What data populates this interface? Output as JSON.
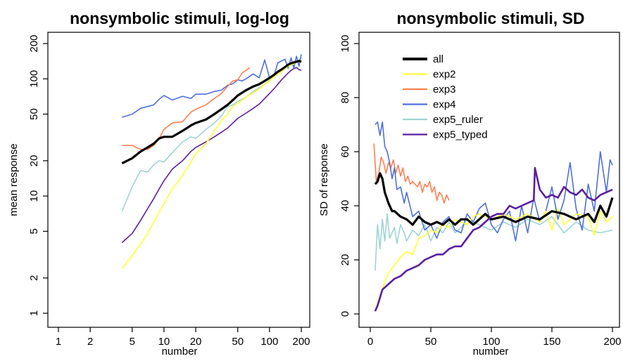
{
  "chart_data": [
    {
      "type": "line",
      "title": "nonsymbolic stimuli, log-log",
      "xlabel": "number",
      "ylabel": "mean response",
      "xscale": "log",
      "yscale": "log",
      "xlim": [
        1,
        200
      ],
      "ylim": [
        1,
        200
      ],
      "xticks": [
        1,
        2,
        5,
        10,
        20,
        50,
        100,
        200
      ],
      "yticks": [
        1,
        2,
        5,
        10,
        20,
        50,
        100,
        200
      ],
      "grid": false,
      "series": [
        {
          "name": "all",
          "color": "#000000",
          "width": 3.2,
          "x": [
            4,
            5,
            6,
            7,
            8,
            9,
            10,
            12,
            15,
            18,
            20,
            25,
            30,
            35,
            40,
            45,
            50,
            60,
            70,
            80,
            90,
            100,
            110,
            120,
            130,
            140,
            150,
            160,
            170,
            180,
            190,
            200
          ],
          "y": [
            19,
            21,
            24,
            26,
            28,
            31,
            32,
            32,
            36,
            40,
            42,
            45,
            50,
            55,
            60,
            66,
            72,
            80,
            86,
            90,
            96,
            102,
            108,
            115,
            120,
            126,
            132,
            136,
            138,
            140,
            142,
            140
          ]
        },
        {
          "name": "exp2",
          "color": "#ffff33",
          "width": 1.6,
          "x": [
            4,
            5,
            6,
            7,
            8,
            9,
            10,
            12,
            15,
            18,
            20,
            25,
            30,
            35,
            40,
            45,
            50,
            60,
            70,
            80,
            90,
            100,
            110,
            120,
            130,
            140,
            150,
            160,
            170,
            180,
            190,
            200
          ],
          "y": [
            2.4,
            3.1,
            3.9,
            4.8,
            6,
            7.3,
            8.6,
            11.5,
            15,
            19.5,
            23,
            28,
            36,
            44,
            50,
            58,
            62,
            70,
            76,
            82,
            90,
            96,
            104,
            110,
            116,
            122,
            128,
            132,
            135,
            138,
            140,
            138
          ]
        },
        {
          "name": "exp3",
          "color": "#ff7f50",
          "width": 1.6,
          "x": [
            4,
            5,
            6,
            7,
            8,
            9,
            10,
            12,
            15,
            18,
            20,
            25,
            30,
            35,
            40,
            45,
            50,
            55,
            60,
            65
          ],
          "y": [
            27,
            27,
            25,
            25,
            27,
            31,
            37,
            42,
            43,
            52,
            55,
            60,
            68,
            75,
            86,
            96,
            98,
            112,
            118,
            125
          ]
        },
        {
          "name": "exp4",
          "color": "#4f6fdd",
          "width": 1.6,
          "x": [
            4,
            5,
            6,
            7,
            8,
            9,
            10,
            12,
            15,
            18,
            20,
            25,
            30,
            35,
            40,
            45,
            50,
            55,
            60,
            70,
            80,
            90,
            100,
            110,
            120,
            130,
            140,
            150,
            160,
            170,
            180,
            190,
            200
          ],
          "y": [
            47,
            50,
            56,
            58,
            60,
            67,
            72,
            66,
            71,
            68,
            74,
            74,
            78,
            80,
            88,
            91,
            98,
            96,
            100,
            110,
            102,
            145,
            102,
            106,
            137,
            142,
            147,
            123,
            151,
            123,
            156,
            128,
            162
          ]
        },
        {
          "name": "exp5_ruler",
          "color": "#9ed4d2",
          "width": 1.6,
          "x": [
            4,
            5,
            6,
            7,
            8,
            9,
            10,
            12,
            15,
            18,
            20,
            25,
            30,
            35,
            40,
            45,
            50,
            60,
            70,
            80,
            90,
            100,
            110,
            120,
            130,
            140,
            150,
            160,
            170,
            180,
            190,
            200
          ],
          "y": [
            7.4,
            12,
            16.5,
            16,
            18.5,
            20,
            19.5,
            23.5,
            29,
            32,
            31,
            37,
            42,
            48,
            58,
            60,
            64,
            70,
            78,
            84,
            90,
            98,
            106,
            112,
            118,
            124,
            130,
            134,
            136,
            140,
            142,
            150
          ]
        },
        {
          "name": "exp5_typed",
          "color": "#5b1fa0",
          "width": 1.6,
          "x": [
            4,
            5,
            6,
            7,
            8,
            9,
            10,
            12,
            15,
            18,
            20,
            25,
            30,
            35,
            40,
            45,
            50,
            60,
            70,
            80,
            90,
            100,
            110,
            120,
            130,
            140,
            150,
            160,
            170,
            180,
            190,
            200
          ],
          "y": [
            4,
            4.8,
            6.2,
            7.8,
            9.5,
            11.5,
            13.5,
            17,
            20,
            24,
            26,
            29,
            32,
            35,
            38,
            42,
            46,
            51,
            56,
            61,
            68,
            75,
            82,
            90,
            98,
            105,
            112,
            118,
            122,
            125,
            120,
            118
          ]
        }
      ]
    },
    {
      "type": "line",
      "title": "nonsymbolic stimuli, SD",
      "xlabel": "number",
      "ylabel": "SD of response",
      "xlim": [
        0,
        200
      ],
      "ylim": [
        0,
        100
      ],
      "xticks": [
        0,
        50,
        100,
        150,
        200
      ],
      "yticks": [
        0,
        20,
        40,
        60,
        80,
        100
      ],
      "grid": false,
      "legend": {
        "position": "top-left"
      },
      "series": [
        {
          "name": "all",
          "color": "#000000",
          "width": 3.2,
          "x": [
            4,
            6,
            8,
            10,
            12,
            15,
            18,
            20,
            25,
            30,
            35,
            40,
            45,
            50,
            55,
            60,
            65,
            70,
            75,
            80,
            85,
            90,
            95,
            100,
            110,
            120,
            130,
            140,
            150,
            160,
            170,
            180,
            185,
            190,
            195,
            200
          ],
          "y": [
            48,
            49,
            52,
            50,
            45,
            41,
            38,
            38,
            36,
            35,
            33,
            36,
            34,
            33,
            34,
            33,
            35,
            33,
            35,
            35,
            33,
            35,
            37,
            35,
            36,
            34,
            36,
            35,
            38,
            37,
            35,
            37,
            34,
            40,
            36,
            43
          ]
        },
        {
          "name": "exp2",
          "color": "#ffff33",
          "width": 1.6,
          "x": [
            4,
            6,
            8,
            10,
            12,
            15,
            18,
            20,
            25,
            30,
            35,
            40,
            45,
            50,
            55,
            60,
            65,
            70,
            75,
            80,
            85,
            90,
            95,
            100,
            110,
            120,
            130,
            140,
            145,
            150,
            155,
            160,
            170,
            180,
            185,
            190,
            195,
            200
          ],
          "y": [
            1,
            4,
            7,
            9,
            12,
            15,
            17,
            18,
            21,
            23,
            22,
            28,
            29,
            31,
            30,
            33,
            32,
            35,
            34,
            33,
            36,
            37,
            36,
            35,
            37,
            35,
            37,
            34,
            38,
            31,
            39,
            33,
            37,
            36,
            29,
            38,
            34,
            36
          ]
        },
        {
          "name": "exp3",
          "color": "#ff7f50",
          "width": 1.6,
          "x": [
            3,
            5,
            7,
            9,
            11,
            13,
            15,
            17,
            19,
            21,
            23,
            25,
            27,
            29,
            31,
            33,
            35,
            37,
            39,
            41,
            43,
            45,
            47,
            49,
            51,
            53,
            55,
            57,
            59,
            61,
            63,
            65
          ],
          "y": [
            63,
            49,
            52,
            58,
            56,
            52,
            56,
            54,
            57,
            52,
            55,
            51,
            54,
            49,
            51,
            48,
            49,
            48,
            47,
            49,
            45,
            48,
            47,
            49,
            45,
            47,
            42,
            45,
            44,
            41,
            44,
            42
          ]
        },
        {
          "name": "exp4",
          "color": "#4f6fdd",
          "width": 1.6,
          "x": [
            4,
            6,
            8,
            10,
            12,
            14,
            16,
            18,
            20,
            22,
            25,
            28,
            30,
            35,
            40,
            45,
            50,
            55,
            60,
            65,
            70,
            75,
            80,
            85,
            90,
            95,
            100,
            105,
            110,
            115,
            120,
            125,
            130,
            135,
            140,
            145,
            150,
            155,
            160,
            165,
            170,
            175,
            180,
            185,
            190,
            195,
            198,
            200
          ],
          "y": [
            70,
            71,
            66,
            71,
            62,
            60,
            56,
            50,
            54,
            46,
            47,
            41,
            45,
            36,
            38,
            31,
            33,
            28,
            34,
            36,
            31,
            30,
            37,
            34,
            39,
            41,
            33,
            30,
            35,
            38,
            27,
            40,
            30,
            43,
            34,
            38,
            47,
            35,
            42,
            56,
            39,
            31,
            48,
            38,
            60,
            45,
            57,
            55
          ]
        },
        {
          "name": "exp5_ruler",
          "color": "#9ed4d2",
          "width": 1.6,
          "x": [
            4,
            6,
            8,
            10,
            12,
            14,
            16,
            18,
            20,
            22,
            25,
            28,
            30,
            35,
            40,
            45,
            50,
            55,
            60,
            65,
            70,
            75,
            80,
            90,
            100,
            110,
            120,
            130,
            140,
            150,
            160,
            170,
            180,
            190,
            200
          ],
          "y": [
            16,
            33,
            24,
            35,
            27,
            37,
            28,
            30,
            32,
            26,
            33,
            30,
            27,
            31,
            29,
            33,
            27,
            32,
            30,
            34,
            30,
            32,
            35,
            33,
            31,
            34,
            32,
            35,
            33,
            36,
            30,
            34,
            31,
            30,
            31
          ]
        },
        {
          "name": "exp5_typed",
          "color": "#5b1fa0",
          "width": 2.6,
          "x": [
            4,
            6,
            8,
            10,
            15,
            20,
            25,
            30,
            35,
            40,
            45,
            50,
            55,
            60,
            65,
            70,
            75,
            80,
            85,
            90,
            95,
            100,
            105,
            110,
            115,
            120,
            125,
            130,
            135,
            136,
            140,
            145,
            150,
            155,
            160,
            165,
            170,
            175,
            180,
            185,
            190,
            195,
            200
          ],
          "y": [
            1,
            3,
            6,
            9,
            11,
            13,
            14,
            16,
            17,
            18,
            20,
            21,
            22,
            22,
            24,
            25,
            25,
            28,
            31,
            32,
            34,
            36,
            37,
            37,
            40,
            39,
            40,
            41,
            42,
            54,
            46,
            43,
            44,
            43,
            47,
            45,
            44,
            46,
            43,
            42,
            44,
            45,
            46
          ]
        }
      ]
    }
  ]
}
